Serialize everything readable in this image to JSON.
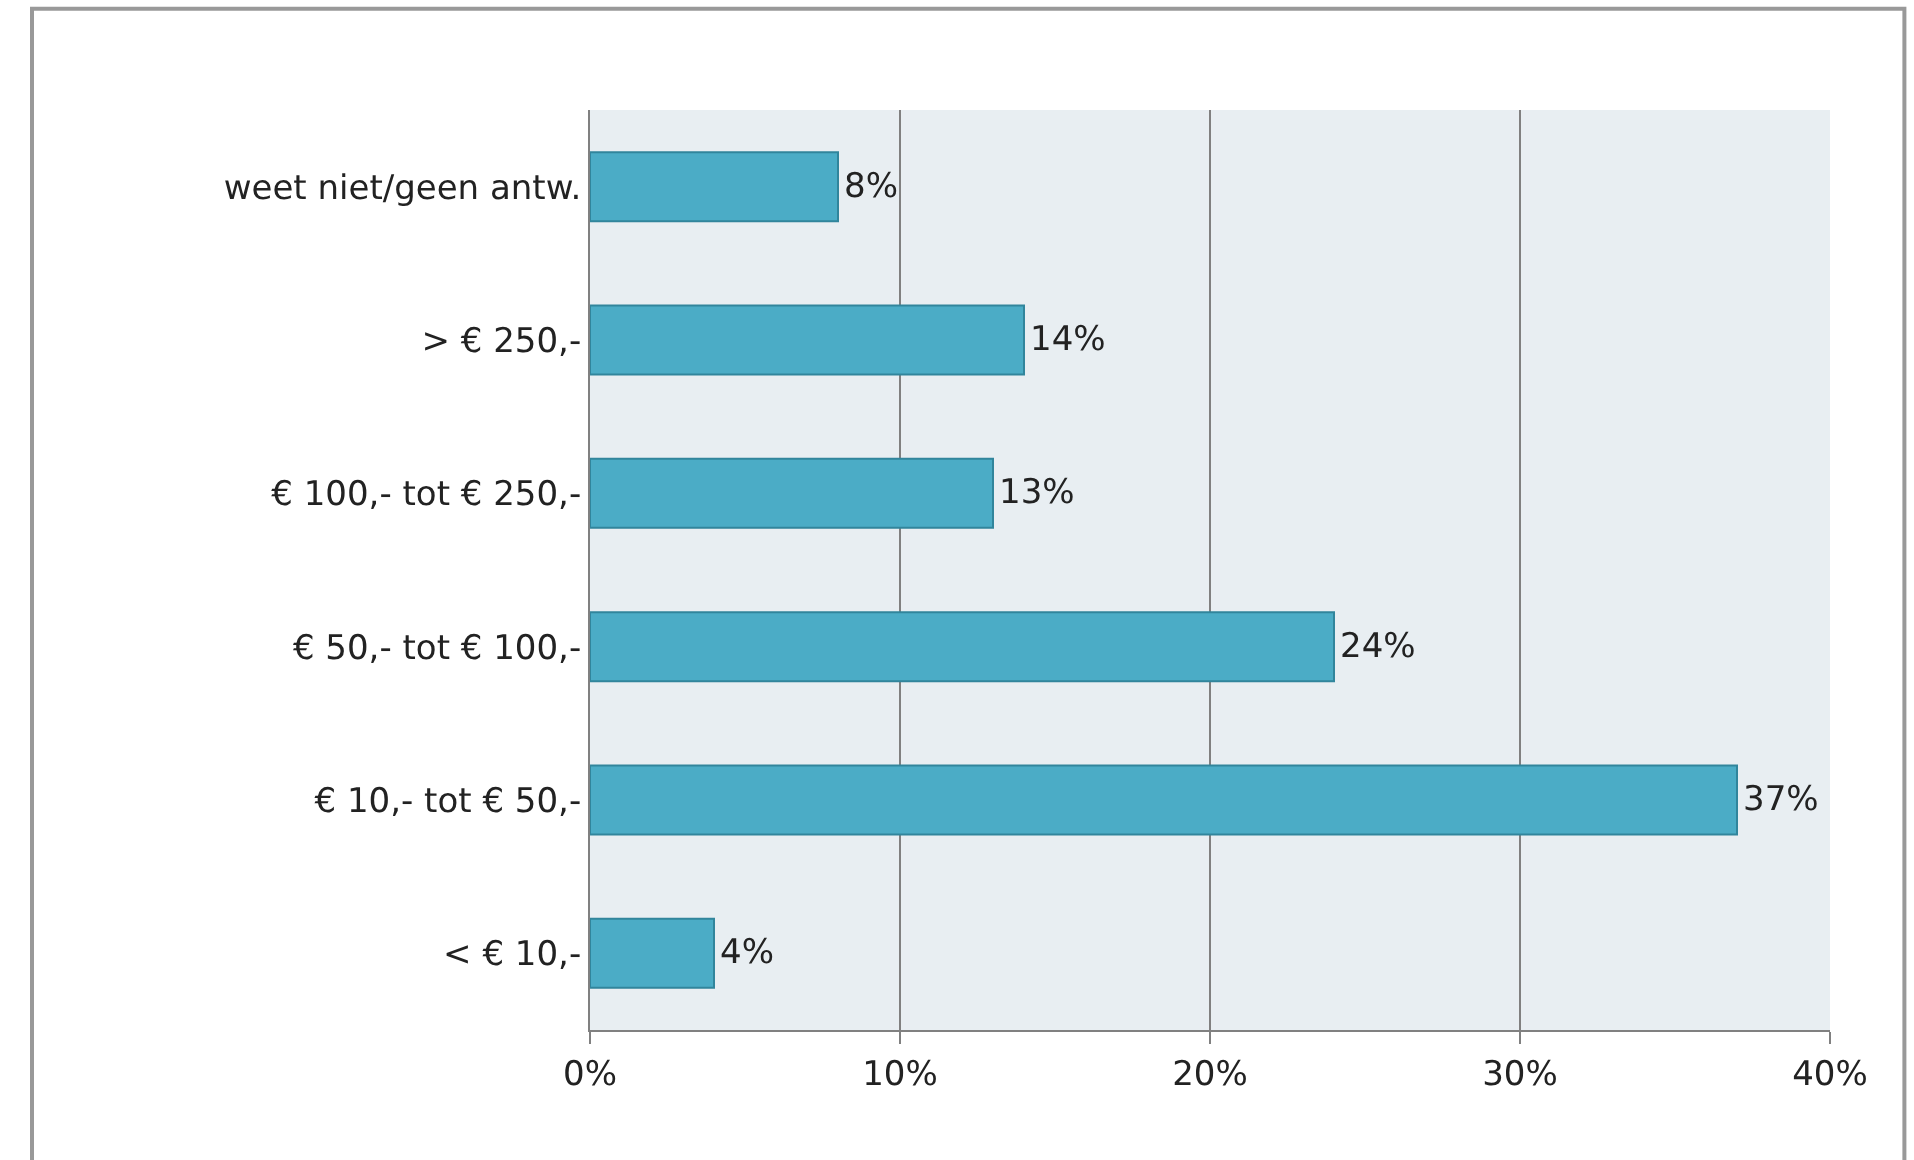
{
  "chart_data": {
    "type": "bar",
    "orientation": "horizontal",
    "categories": [
      "weet niet/geen antw.",
      "> € 250,-",
      "€ 100,- tot € 250,-",
      "€ 50,- tot € 100,-",
      "€ 10,- tot € 50,-",
      "< € 10,-"
    ],
    "values": [
      8,
      14,
      13,
      24,
      37,
      4
    ],
    "value_labels": [
      "8%",
      "14%",
      "13%",
      "24%",
      "37%",
      "4%"
    ],
    "color": "#4bacc6",
    "xlim": [
      0,
      40
    ],
    "xticks": [
      {
        "value": 0,
        "label": "0%"
      },
      {
        "value": 10,
        "label": "10%"
      },
      {
        "value": 20,
        "label": "20%"
      },
      {
        "value": 30,
        "label": "30%"
      },
      {
        "value": 40,
        "label": "40%"
      }
    ],
    "grid": "x",
    "legend": false
  }
}
